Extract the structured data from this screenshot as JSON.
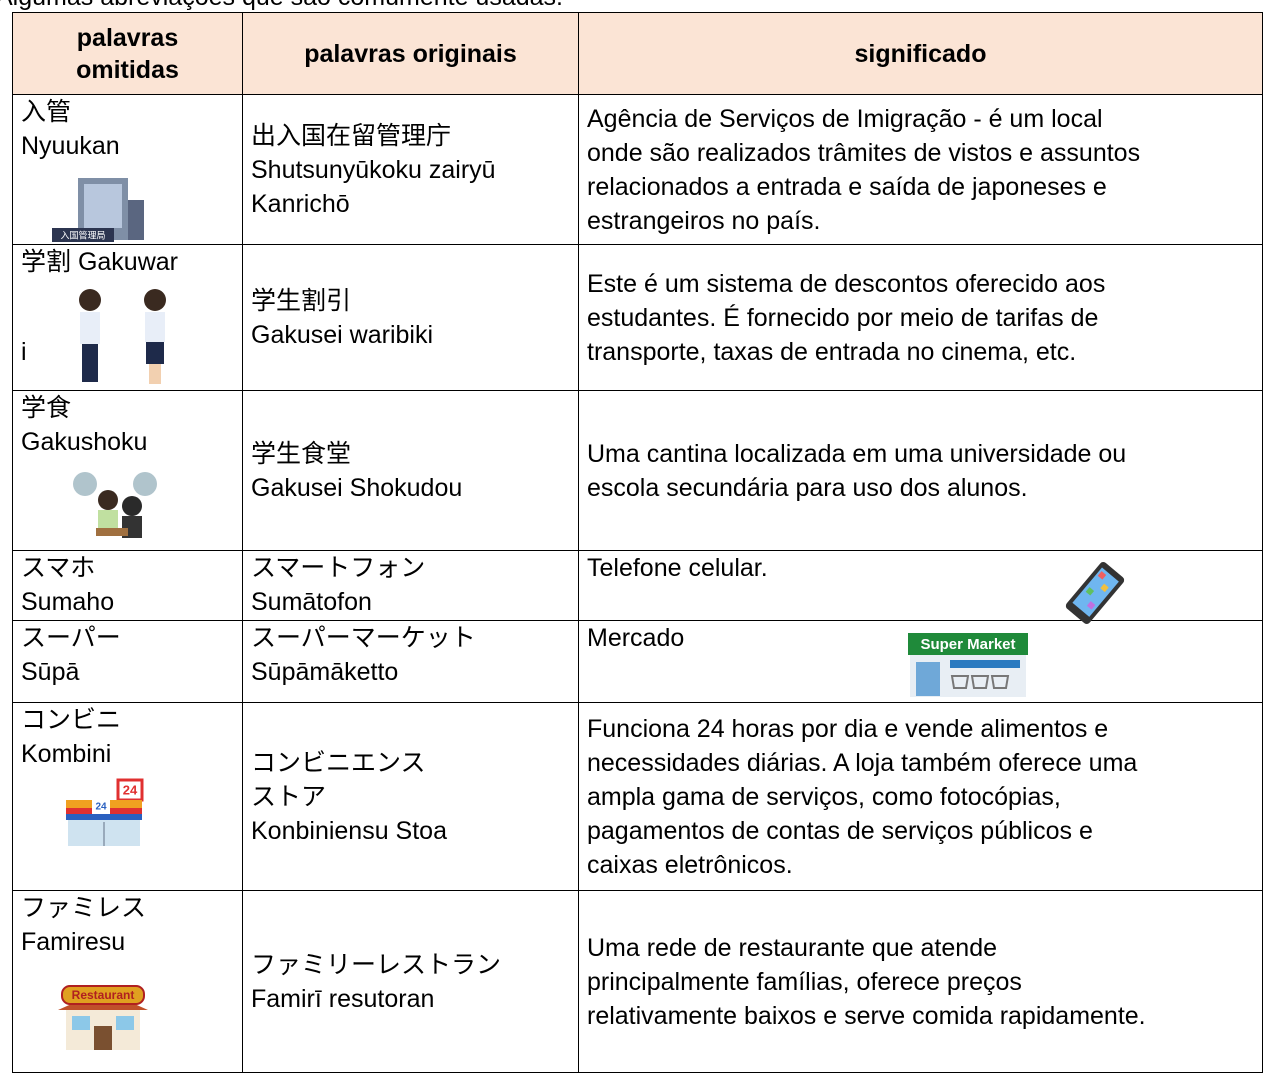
{
  "header": {
    "title": "Algumas abreviações que são comumente usadas."
  },
  "table": {
    "columns": [
      [
        "palavras",
        "omitidas"
      ],
      [
        "palavras originais"
      ],
      [
        "significado"
      ]
    ],
    "rows": [
      [
        [
          "入管",
          "Nyuukan"
        ],
        [
          "出入国在留管理庁",
          "Shutsunyūkoku zairyū",
          "Kanrichō"
        ],
        [
          "Agência de Serviços de Imigração - é um local",
          "onde são realizados trâmites de vistos e assuntos",
          "relacionados a entrada e saída de japoneses e",
          "estrangeiros no país."
        ]
      ],
      [
        [
          "学割  Gakuwar",
          "i"
        ],
        [
          "学生割引",
          "Gakusei waribiki"
        ],
        [
          "Este é um sistema de descontos oferecido aos",
          "estudantes. É fornecido por meio de tarifas de",
          "transporte, taxas de entrada no cinema, etc."
        ]
      ],
      [
        [
          "学食",
          "Gakushoku"
        ],
        [
          "学生食堂",
          "Gakusei Shokudou"
        ],
        [
          "Uma cantina localizada em uma universidade ou",
          "escola secundária para uso dos alunos."
        ]
      ],
      [
        [
          "スマホ",
          "Sumaho"
        ],
        [
          "スマートフォン",
          "Sumātofon"
        ],
        [
          "Telefone celular."
        ]
      ],
      [
        [
          "スーパー",
          "Sūpā"
        ],
        [
          "スーパーマーケット",
          "Sūpāmāketto"
        ],
        [
          "Mercado"
        ]
      ],
      [
        [
          "コンビニ",
          "Kombini"
        ],
        [
          "コンビニエンス",
          "ストア",
          "Konbiniensu Stoa"
        ],
        [
          "Funciona 24 horas por dia e vende alimentos e",
          "necessidades diárias. A loja também oferece uma",
          "ampla gama de serviços, como fotocópias,",
          "pagamentos de contas de serviços públicos e",
          "caixas eletrônicos."
        ]
      ],
      [
        [
          "ファミレス",
          "Famiresu"
        ],
        [
          "ファミリーレストラン",
          "Famirī resutoran"
        ],
        [
          "Uma rede de restaurante que atende",
          "principalmente famílias, oferece preços",
          "relativamente baixos e serve comida rapidamente."
        ]
      ]
    ]
  }
}
